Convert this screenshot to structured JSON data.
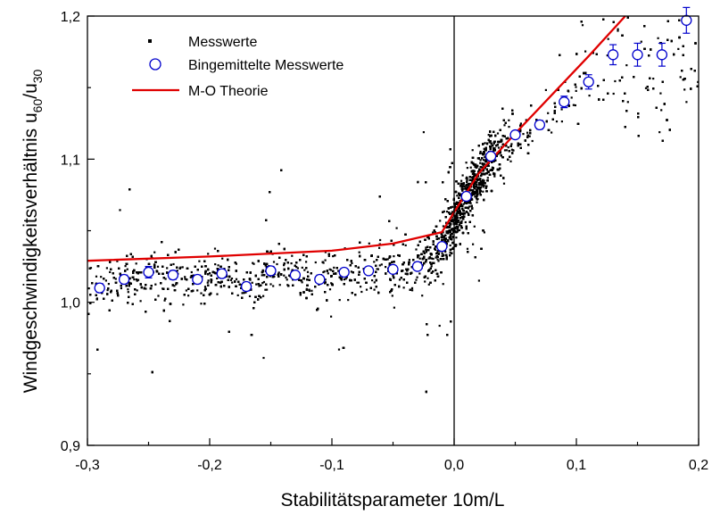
{
  "chart_data": {
    "type": "scatter",
    "title": "",
    "xlabel": "Stabilitätsparameter 10m/L",
    "ylabel": "Windgeschwindigkeitsverhältnis u",
    "ylabel_sub1": "60",
    "ylabel_mid": "/u",
    "ylabel_sub2": "30",
    "xlim": [
      -0.3,
      0.2
    ],
    "ylim": [
      0.9,
      1.2
    ],
    "xticks": [
      -0.3,
      -0.2,
      -0.1,
      0.0,
      0.1,
      0.2
    ],
    "xtick_labels": [
      "-0,3",
      "-0,2",
      "-0,1",
      "0,0",
      "0,1",
      "0,2"
    ],
    "yticks": [
      0.9,
      1.0,
      1.1,
      1.2
    ],
    "ytick_labels": [
      "0,9",
      "1,0",
      "1,1",
      "1,2"
    ],
    "grid": false,
    "legend_position": "top-left",
    "vertical_reference_x": 0.0,
    "colors": {
      "scatter": "#000000",
      "binned": "#0000cc",
      "theory": "#e00000"
    },
    "series": [
      {
        "name": "Messwerte",
        "kind": "scatter-cloud",
        "note_points": "dense cloud of individual measurements; drawn procedurally around the binned means",
        "n_points": 9000
      },
      {
        "name": "Bingemittelte Messwerte",
        "kind": "circles-with-errorbars",
        "x": [
          -0.29,
          -0.27,
          -0.25,
          -0.23,
          -0.21,
          -0.19,
          -0.17,
          -0.15,
          -0.13,
          -0.11,
          -0.09,
          -0.07,
          -0.05,
          -0.03,
          -0.01,
          0.01,
          0.03,
          0.05,
          0.07,
          0.09,
          0.11,
          0.13,
          0.15,
          0.17,
          0.19
        ],
        "y": [
          1.01,
          1.016,
          1.021,
          1.019,
          1.016,
          1.02,
          1.011,
          1.022,
          1.019,
          1.016,
          1.021,
          1.022,
          1.023,
          1.025,
          1.039,
          1.074,
          1.102,
          1.117,
          1.124,
          1.14,
          1.154,
          1.173,
          1.173,
          1.173,
          1.197
        ],
        "err": [
          0.003,
          0.003,
          0.004,
          0.003,
          0.003,
          0.003,
          0.003,
          0.003,
          0.002,
          0.002,
          0.002,
          0.002,
          0.002,
          0.002,
          0.002,
          0.002,
          0.002,
          0.002,
          0.003,
          0.004,
          0.005,
          0.007,
          0.008,
          0.008,
          0.009
        ]
      },
      {
        "name": "M-O Theorie",
        "kind": "line",
        "x": [
          -0.3,
          -0.2,
          -0.1,
          -0.05,
          -0.01,
          0.0,
          0.02,
          0.05,
          0.08,
          0.11,
          0.14
        ],
        "y": [
          1.029,
          1.032,
          1.036,
          1.041,
          1.049,
          1.063,
          1.09,
          1.118,
          1.145,
          1.172,
          1.2
        ]
      }
    ]
  }
}
